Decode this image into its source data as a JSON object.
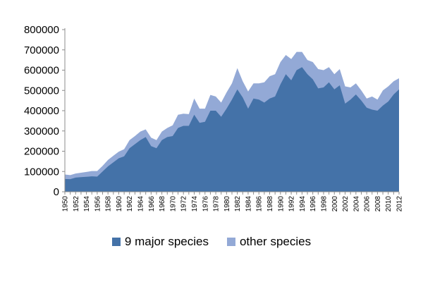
{
  "chart_data": {
    "type": "area",
    "stacked": true,
    "title": "",
    "xlabel": "",
    "ylabel": "",
    "ylim": [
      0,
      800000
    ],
    "yticks": [
      "0",
      "100000",
      "200000",
      "300000",
      "400000",
      "500000",
      "600000",
      "700000",
      "800000"
    ],
    "xticks": [
      "1950",
      "1952",
      "1954",
      "1956",
      "1958",
      "1960",
      "1962",
      "1964",
      "1966",
      "1968",
      "1970",
      "1972",
      "1974",
      "1976",
      "1978",
      "1980",
      "1982",
      "1984",
      "1986",
      "1988",
      "1990",
      "1992",
      "1994",
      "1996",
      "1998",
      "2000",
      "2002",
      "2004",
      "2006",
      "2008",
      "2010",
      "2012"
    ],
    "grid": false,
    "legend_position": "bottom",
    "x": [
      1950,
      1951,
      1952,
      1953,
      1954,
      1955,
      1956,
      1957,
      1958,
      1959,
      1960,
      1961,
      1962,
      1963,
      1964,
      1965,
      1966,
      1967,
      1968,
      1969,
      1970,
      1971,
      1972,
      1973,
      1974,
      1975,
      1976,
      1977,
      1978,
      1979,
      1980,
      1981,
      1982,
      1983,
      1984,
      1985,
      1986,
      1987,
      1988,
      1989,
      1990,
      1991,
      1992,
      1993,
      1994,
      1995,
      1996,
      1997,
      1998,
      1999,
      2000,
      2001,
      2002,
      2003,
      2004,
      2005,
      2006,
      2007,
      2008,
      2009,
      2010,
      2011,
      2012
    ],
    "series": [
      {
        "name": "9 major species",
        "color": "#4472a8",
        "values": [
          63000,
          62000,
          70000,
          72000,
          74000,
          76000,
          75000,
          100000,
          125000,
          145000,
          165000,
          175000,
          215000,
          235000,
          255000,
          270000,
          225000,
          215000,
          255000,
          270000,
          275000,
          315000,
          325000,
          325000,
          380000,
          340000,
          345000,
          400000,
          400000,
          370000,
          410000,
          455000,
          505000,
          465000,
          410000,
          460000,
          455000,
          440000,
          460000,
          470000,
          530000,
          580000,
          550000,
          600000,
          615000,
          580000,
          555000,
          510000,
          515000,
          540000,
          505000,
          525000,
          435000,
          455000,
          480000,
          450000,
          415000,
          405000,
          400000,
          425000,
          445000,
          480000,
          505000
        ]
      },
      {
        "name": "other species",
        "color": "#93a9d6",
        "values": [
          22000,
          20000,
          20000,
          22000,
          24000,
          26000,
          27000,
          28000,
          32000,
          33000,
          33000,
          35000,
          40000,
          40000,
          42000,
          38000,
          42000,
          40000,
          42000,
          45000,
          53000,
          65000,
          60000,
          58000,
          80000,
          70000,
          65000,
          78000,
          70000,
          70000,
          80000,
          80000,
          105000,
          80000,
          85000,
          75000,
          80000,
          100000,
          110000,
          110000,
          110000,
          95000,
          105000,
          90000,
          75000,
          70000,
          85000,
          95000,
          85000,
          75000,
          75000,
          80000,
          85000,
          60000,
          55000,
          50000,
          45000,
          65000,
          55000,
          75000,
          75000,
          65000,
          55000
        ]
      }
    ]
  }
}
